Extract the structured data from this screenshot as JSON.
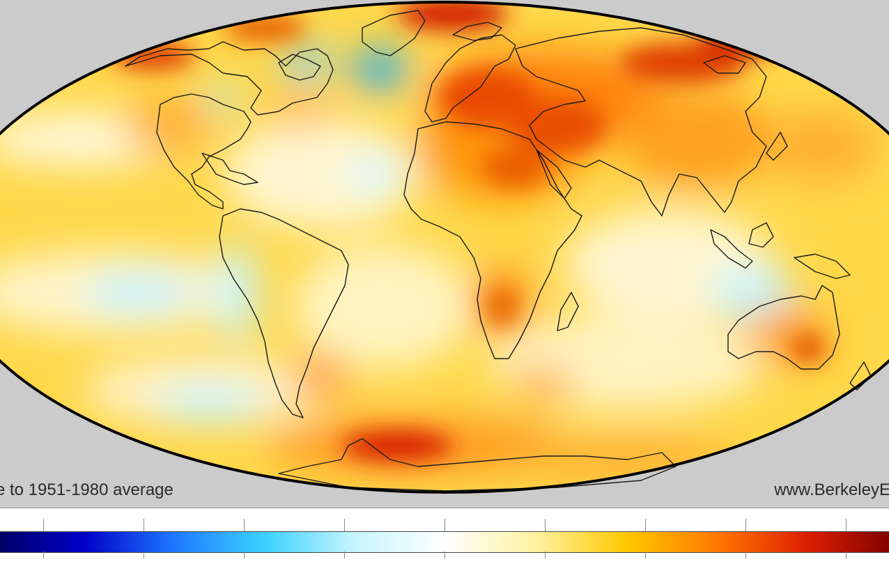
{
  "map": {
    "projection": "Mollweide",
    "region": "world",
    "caption_left": "e to 1951-1980 average",
    "caption_right": "www.BerkeleyE"
  },
  "colors": {
    "background": "#cbcbcb",
    "outline": "#000000",
    "coast": "#1a1a1a",
    "colorbar": [
      "#000060",
      "#0000c8",
      "#1e78ff",
      "#3cd2ff",
      "#c8f5ff",
      "#ffffff",
      "#fff2a0",
      "#ffc800",
      "#ff7800",
      "#dc1e00",
      "#780000"
    ]
  },
  "anomaly_hotspots": [
    {
      "name": "Europe-Middle East",
      "level": "strong warming"
    },
    {
      "name": "Siberia",
      "level": "strong warming"
    },
    {
      "name": "North Atlantic south of Greenland",
      "level": "cooling"
    },
    {
      "name": "Antarctic coast",
      "level": "strong warming"
    },
    {
      "name": "Southern Africa",
      "level": "warming"
    },
    {
      "name": "Eastern Pacific",
      "level": "slight cooling"
    }
  ]
}
